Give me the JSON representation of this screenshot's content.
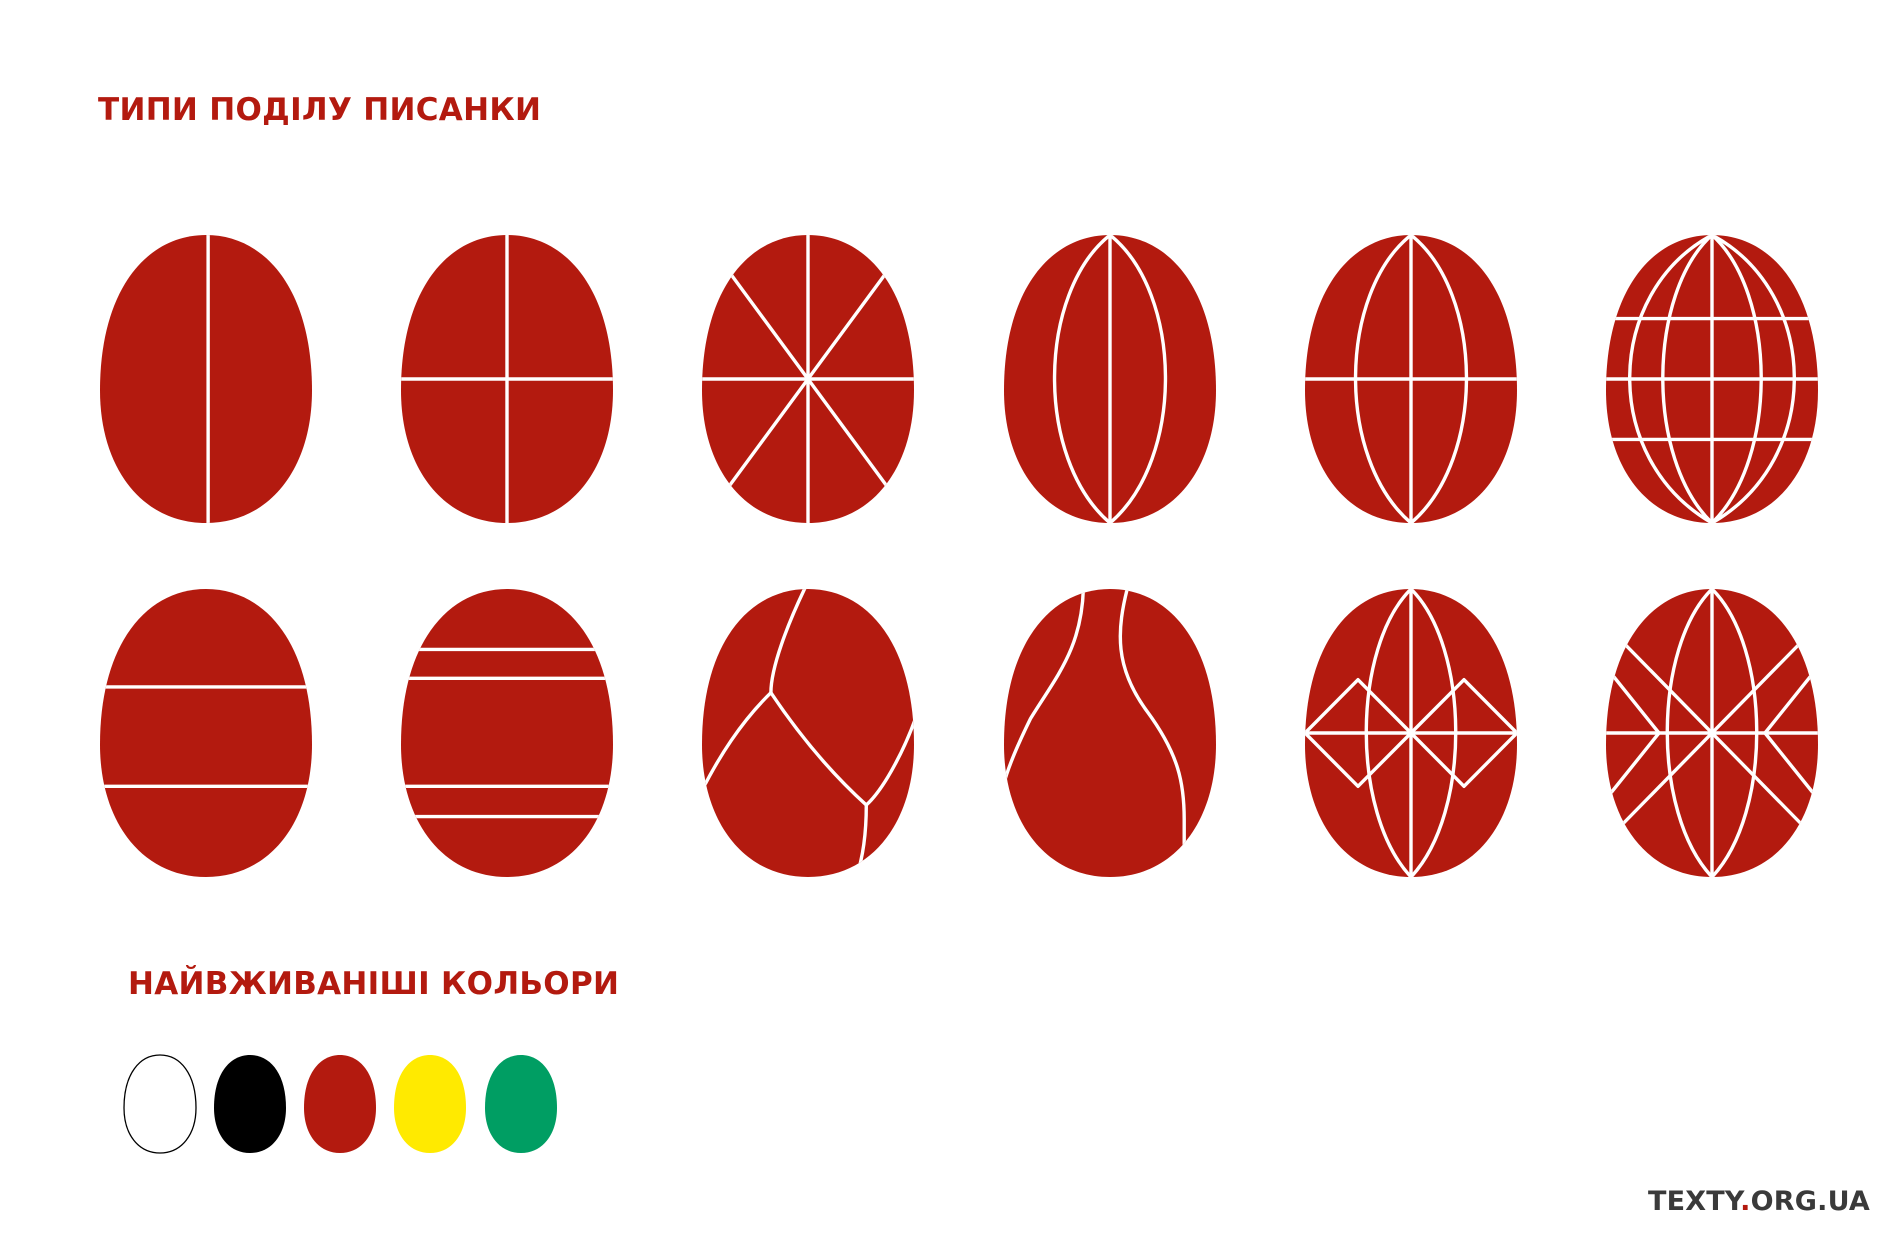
{
  "colors": {
    "egg": "#b31a0f",
    "title": "#b31a0f",
    "line": "#ffffff"
  },
  "titles": {
    "divisions": "ТИПИ ПОДІЛУ ПИСАНКИ",
    "colors": "НАЙВЖИВАНІШІ КОЛЬОРИ"
  },
  "brand": {
    "name": "TEXTY",
    "dot": ".",
    "domain": "ORG.UA"
  },
  "division_types": [
    {
      "pattern": "vertical-half"
    },
    {
      "pattern": "quarters"
    },
    {
      "pattern": "eight-star"
    },
    {
      "pattern": "meridian-arcs"
    },
    {
      "pattern": "meridian-arcs-equator"
    },
    {
      "pattern": "meridian-grid"
    },
    {
      "pattern": "two-bands"
    },
    {
      "pattern": "four-bands"
    },
    {
      "pattern": "free-form-1"
    },
    {
      "pattern": "free-form-2"
    },
    {
      "pattern": "meridians-diamonds"
    },
    {
      "pattern": "meridians-star-diamonds"
    }
  ],
  "common_colors": [
    {
      "name": "white",
      "fill": "#ffffff",
      "stroke": "#000000"
    },
    {
      "name": "black",
      "fill": "#000000",
      "stroke": "none"
    },
    {
      "name": "red",
      "fill": "#b31a0f",
      "stroke": "none"
    },
    {
      "name": "yellow",
      "fill": "#ffea00",
      "stroke": "none"
    },
    {
      "name": "green",
      "fill": "#009e63",
      "stroke": "none"
    }
  ]
}
